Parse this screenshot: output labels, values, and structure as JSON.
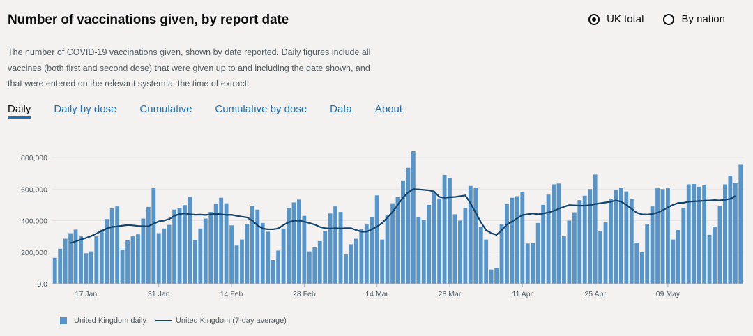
{
  "header": {
    "title": "Number of vaccinations given, by report date",
    "description": "The number of COVID-19 vaccinations given, shown by date reported. Daily figures include all vaccines (both first and second dose) that were given up to and including the date shown, and that were entered on the relevant system at the time of extract."
  },
  "options": [
    {
      "label": "UK total",
      "selected": true
    },
    {
      "label": "By nation",
      "selected": false
    }
  ],
  "tabs": [
    {
      "label": "Daily",
      "active": true
    },
    {
      "label": "Daily by dose",
      "active": false
    },
    {
      "label": "Cumulative",
      "active": false
    },
    {
      "label": "Cumulative by dose",
      "active": false
    },
    {
      "label": "Data",
      "active": false
    },
    {
      "label": "About",
      "active": false
    }
  ],
  "legend": {
    "bar_label": "United Kingdom daily",
    "line_label": "United Kingdom (7-day average)"
  },
  "colors": {
    "bar": "#5694ca",
    "line": "#12436d",
    "link": "#1d70b8",
    "axis_text": "#505a5f"
  },
  "chart_data": {
    "type": "bar",
    "x_start": "2021-01-11",
    "x_end": "2021-05-25",
    "x_ticks": [
      "17 Jan",
      "31 Jan",
      "14 Feb",
      "28 Feb",
      "14 Mar",
      "28 Mar",
      "11 Apr",
      "25 Apr",
      "09 May"
    ],
    "y_ticks": [
      "0.0",
      "200,000",
      "400,000",
      "600,000",
      "800,000"
    ],
    "ylim": [
      0,
      800000
    ],
    "grid": true,
    "legend_position": "bottom-left",
    "series": [
      {
        "name": "United Kingdom daily",
        "type": "bar",
        "values": [
          165000,
          222000,
          285000,
          320000,
          343000,
          300000,
          193000,
          205000,
          300000,
          342000,
          410000,
          477000,
          490000,
          217000,
          275000,
          300000,
          313000,
          413000,
          487000,
          607000,
          320000,
          350000,
          373000,
          470000,
          480000,
          498000,
          550000,
          277000,
          350000,
          413000,
          455000,
          506000,
          545000,
          510000,
          370000,
          242000,
          280000,
          380000,
          495000,
          470000,
          385000,
          330000,
          150000,
          210000,
          350000,
          480000,
          515000,
          533000,
          430000,
          205000,
          230000,
          270000,
          335000,
          445000,
          490000,
          455000,
          185000,
          250000,
          285000,
          345000,
          375000,
          420000,
          560000,
          280000,
          435000,
          510000,
          550000,
          655000,
          735000,
          840000,
          420000,
          405000,
          500000,
          580000,
          540000,
          690000,
          670000,
          440000,
          400000,
          480000,
          620000,
          610000,
          360000,
          280000,
          90000,
          100000,
          380000,
          505000,
          545000,
          555000,
          580000,
          255000,
          258000,
          385000,
          500000,
          565000,
          630000,
          635000,
          300000,
          400000,
          453000,
          530000,
          558000,
          600000,
          692000,
          335000,
          390000,
          535000,
          595000,
          610000,
          585000,
          535000,
          260000,
          200000,
          380000,
          490000,
          605000,
          600000,
          605000,
          280000,
          340000,
          480000,
          630000,
          632000,
          615000,
          625000,
          310000,
          362000,
          495000,
          630000,
          685000,
          640000,
          758000
        ]
      },
      {
        "name": "United Kingdom (7-day average)",
        "type": "line",
        "start_index": 3,
        "values": [
          258000,
          268000,
          280000,
          290000,
          302000,
          318000,
          335000,
          350000,
          360000,
          363000,
          368000,
          372000,
          370000,
          366000,
          364000,
          365000,
          380000,
          395000,
          400000,
          410000,
          430000,
          442000,
          446000,
          440000,
          437000,
          438000,
          436000,
          440000,
          443000,
          440000,
          436000,
          437000,
          430000,
          425000,
          420000,
          400000,
          370000,
          350000,
          345000,
          345000,
          350000,
          372000,
          390000,
          400000,
          400000,
          393000,
          385000,
          375000,
          360000,
          352000,
          350000,
          352000,
          350000,
          352000,
          352000,
          340000,
          330000,
          330000,
          345000,
          362000,
          385000,
          420000,
          455000,
          500000,
          545000,
          580000,
          600000,
          598000,
          595000,
          592000,
          585000,
          550000,
          545000,
          548000,
          550000,
          555000,
          560000,
          510000,
          450000,
          390000,
          340000,
          320000,
          310000,
          338000,
          375000,
          395000,
          415000,
          435000,
          440000,
          445000,
          440000,
          445000,
          452000,
          462000,
          475000,
          488000,
          498000,
          497000,
          495000,
          495000,
          498000,
          505000,
          510000,
          515000,
          520000,
          528000,
          520000,
          500000,
          475000,
          450000,
          440000,
          438000,
          442000,
          450000,
          465000,
          485000,
          500000,
          512000,
          513000,
          520000,
          522000,
          524000,
          526000,
          528000,
          530000,
          528000,
          532000,
          538000,
          556000
        ]
      }
    ]
  }
}
